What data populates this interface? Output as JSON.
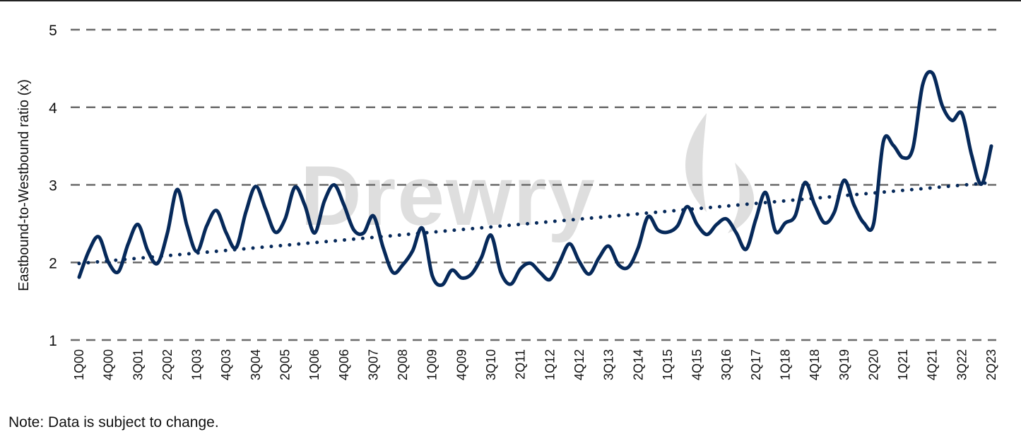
{
  "chart_data": {
    "type": "line",
    "ylabel": "Eastbound-to-Westbound ratio (x)",
    "xlabel": "",
    "ylim": [
      1,
      5
    ],
    "yticks": [
      "1",
      "2",
      "3",
      "4",
      "5"
    ],
    "grid": "horizontal dashed",
    "legend": "none",
    "xtick_labels": [
      "1Q00",
      "4Q00",
      "3Q01",
      "2Q02",
      "1Q03",
      "4Q03",
      "3Q04",
      "2Q05",
      "1Q06",
      "4Q06",
      "3Q07",
      "2Q08",
      "1Q09",
      "4Q09",
      "3Q10",
      "2Q11",
      "1Q12",
      "4Q12",
      "3Q13",
      "2Q14",
      "1Q15",
      "4Q15",
      "3Q16",
      "2Q17",
      "1Q18",
      "4Q18",
      "3Q19",
      "2Q20",
      "1Q21",
      "4Q21",
      "3Q22",
      "2Q23"
    ],
    "categories": [
      "1Q00",
      "2Q00",
      "3Q00",
      "4Q00",
      "1Q01",
      "2Q01",
      "3Q01",
      "4Q01",
      "1Q02",
      "2Q02",
      "3Q02",
      "4Q02",
      "1Q03",
      "2Q03",
      "3Q03",
      "4Q03",
      "1Q04",
      "2Q04",
      "3Q04",
      "4Q04",
      "1Q05",
      "2Q05",
      "3Q05",
      "4Q05",
      "1Q06",
      "2Q06",
      "3Q06",
      "4Q06",
      "1Q07",
      "2Q07",
      "3Q07",
      "4Q07",
      "1Q08",
      "2Q08",
      "3Q08",
      "4Q08",
      "1Q09",
      "2Q09",
      "3Q09",
      "4Q09",
      "1Q10",
      "2Q10",
      "3Q10",
      "4Q10",
      "1Q11",
      "2Q11",
      "3Q11",
      "4Q11",
      "1Q12",
      "2Q12",
      "3Q12",
      "4Q12",
      "1Q13",
      "2Q13",
      "3Q13",
      "4Q13",
      "1Q14",
      "2Q14",
      "3Q14",
      "4Q14",
      "1Q15",
      "2Q15",
      "3Q15",
      "4Q15",
      "1Q16",
      "2Q16",
      "3Q16",
      "4Q16",
      "1Q17",
      "2Q17",
      "3Q17",
      "4Q17",
      "1Q18",
      "2Q18",
      "3Q18",
      "4Q18",
      "1Q19",
      "2Q19",
      "3Q19",
      "4Q19",
      "1Q20",
      "2Q20",
      "3Q20",
      "4Q20",
      "1Q21",
      "2Q21",
      "3Q21",
      "4Q21",
      "1Q22",
      "2Q22",
      "3Q22",
      "4Q22",
      "1Q23",
      "2Q23"
    ],
    "series": [
      {
        "values": [
          1.81,
          2.15,
          2.33,
          2.0,
          1.88,
          2.24,
          2.49,
          2.15,
          1.99,
          2.38,
          2.94,
          2.47,
          2.14,
          2.47,
          2.67,
          2.38,
          2.19,
          2.65,
          2.98,
          2.69,
          2.39,
          2.56,
          2.97,
          2.74,
          2.38,
          2.79,
          3.0,
          2.74,
          2.42,
          2.38,
          2.6,
          2.19,
          1.87,
          1.97,
          2.15,
          2.44,
          1.83,
          1.71,
          1.9,
          1.8,
          1.85,
          2.06,
          2.35,
          1.87,
          1.72,
          1.92,
          1.99,
          1.87,
          1.78,
          2.01,
          2.24,
          2.01,
          1.85,
          2.06,
          2.21,
          1.97,
          1.94,
          2.19,
          2.59,
          2.42,
          2.39,
          2.47,
          2.72,
          2.49,
          2.36,
          2.49,
          2.56,
          2.38,
          2.17,
          2.56,
          2.9,
          2.4,
          2.51,
          2.6,
          3.03,
          2.74,
          2.51,
          2.65,
          3.06,
          2.74,
          2.51,
          2.5,
          3.56,
          3.51,
          3.35,
          3.47,
          4.29,
          4.44,
          4.02,
          3.83,
          3.92,
          3.38,
          3.01,
          3.5
        ],
        "color": "#06295a",
        "style": "solid"
      }
    ],
    "trendline": {
      "type": "linear",
      "style": "dotted",
      "color": "#06295a"
    }
  },
  "watermark": "Drewry",
  "note": "Note: Data is subject to change."
}
